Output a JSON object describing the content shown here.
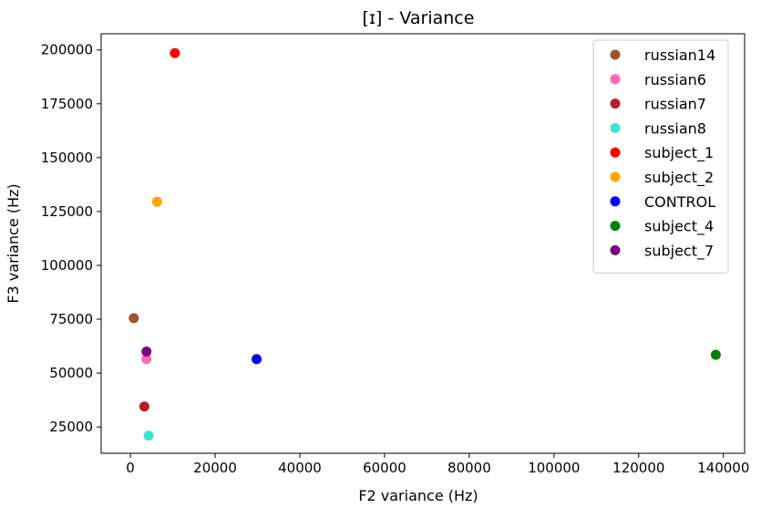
{
  "chart_data": {
    "type": "scatter",
    "title": "[ɪ] - Variance",
    "xlabel": "F2 variance (Hz)",
    "ylabel": "F3 variance (Hz)",
    "xlim": [
      -6900,
      145000
    ],
    "ylim": [
      12800,
      207500
    ],
    "xticks": [
      0,
      20000,
      40000,
      60000,
      80000,
      100000,
      120000,
      140000
    ],
    "yticks": [
      25000,
      50000,
      75000,
      100000,
      125000,
      150000,
      175000,
      200000
    ],
    "grid": false,
    "legend_position": "top-right",
    "series": [
      {
        "name": "russian14",
        "color": "#a0522d",
        "x": [
          800
        ],
        "y": [
          75500
        ]
      },
      {
        "name": "russian6",
        "color": "#ff69b4",
        "x": [
          3800
        ],
        "y": [
          56500
        ]
      },
      {
        "name": "russian7",
        "color": "#b22222",
        "x": [
          3300
        ],
        "y": [
          34500
        ]
      },
      {
        "name": "russian8",
        "color": "#40e0d0",
        "x": [
          4300
        ],
        "y": [
          21000
        ]
      },
      {
        "name": "subject_1",
        "color": "#ff0000",
        "x": [
          10500
        ],
        "y": [
          198500
        ]
      },
      {
        "name": "subject_2",
        "color": "#ffa500",
        "x": [
          6300
        ],
        "y": [
          129500
        ]
      },
      {
        "name": "CONTROL",
        "color": "#0000ff",
        "x": [
          29800
        ],
        "y": [
          56500
        ]
      },
      {
        "name": "subject_4",
        "color": "#008000",
        "x": [
          138200
        ],
        "y": [
          58500
        ]
      },
      {
        "name": "subject_7",
        "color": "#800080",
        "x": [
          3800
        ],
        "y": [
          60000
        ]
      }
    ]
  }
}
